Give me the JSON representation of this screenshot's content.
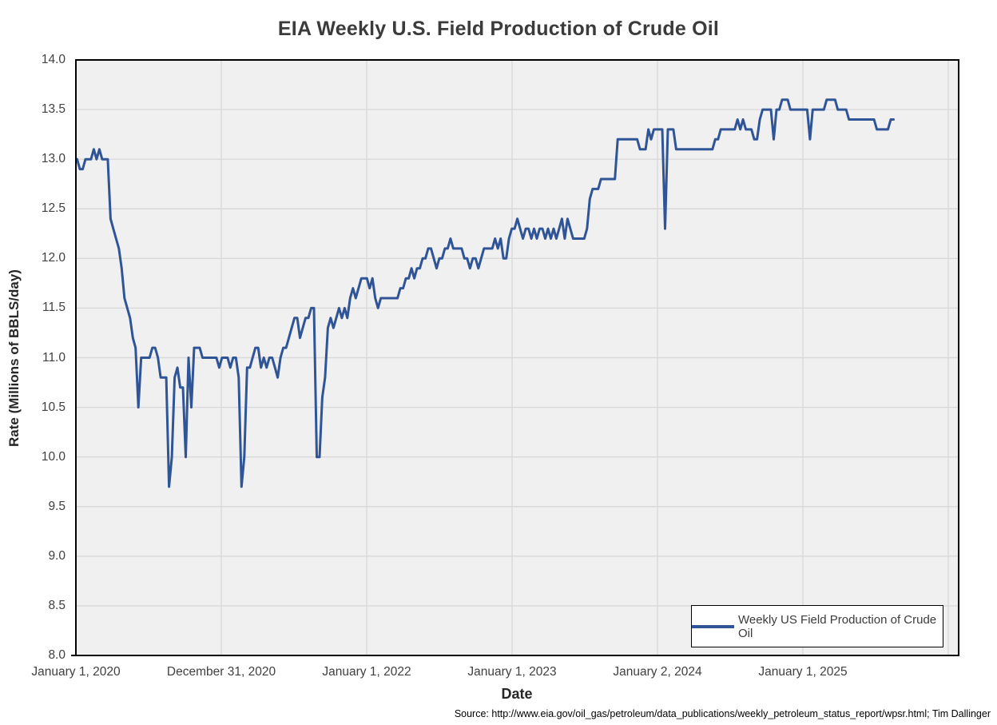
{
  "title": "EIA Weekly U.S. Field Production of Crude Oil",
  "y_axis": {
    "title": "Rate (Millions of BBLS/day)",
    "tick_labels": [
      "14.0",
      "13.5",
      "13.0",
      "12.5",
      "12.0",
      "11.5",
      "11.0",
      "10.5",
      "10.0",
      "9.5",
      "9.0",
      "8.5",
      "8.0"
    ]
  },
  "x_axis": {
    "title": "Date",
    "tick_labels": [
      "January 1, 2020",
      "December 31, 2020",
      "January 1, 2022",
      "January 1, 2023",
      "January 2, 2024",
      "January 1, 2025"
    ]
  },
  "legend": {
    "label": "Weekly US Field Production of Crude Oil"
  },
  "source": "Source: http://www.eia.gov/oil_gas/petroleum/data_publications/weekly_petroleum_status_report/wpsr.html; Tim Dallinger",
  "colors": {
    "series": "#2F5597",
    "plot_background": "#F0F0F0",
    "gridline": "#D9D9D9",
    "plot_border": "#000000"
  },
  "chart_data": {
    "type": "line",
    "title": "EIA Weekly U.S. Field Production of Crude Oil",
    "xlabel": "Date",
    "ylabel": "Rate (Millions of BBLS/day)",
    "ylim": [
      8.0,
      14.0
    ],
    "y_step": 0.5,
    "grid": true,
    "legend_position": "bottom-right-inside",
    "series_name": "Weekly US Field Production of Crude Oil",
    "frequency": "weekly",
    "start_week": "2020-01-03",
    "end_week": "2025-08-15",
    "units": "million barrels per day",
    "values": [
      13.0,
      12.9,
      12.9,
      13.0,
      13.0,
      13.0,
      13.1,
      13.0,
      13.1,
      13.0,
      13.0,
      13.0,
      12.4,
      12.3,
      12.2,
      12.1,
      11.9,
      11.6,
      11.5,
      11.4,
      11.2,
      11.1,
      10.5,
      11.0,
      11.0,
      11.0,
      11.0,
      11.1,
      11.1,
      11.0,
      10.8,
      10.8,
      10.8,
      9.7,
      10.0,
      10.8,
      10.9,
      10.7,
      10.7,
      10.0,
      11.0,
      10.5,
      11.1,
      11.1,
      11.1,
      11.0,
      11.0,
      11.0,
      11.0,
      11.0,
      11.0,
      10.9,
      11.0,
      11.0,
      11.0,
      10.9,
      11.0,
      11.0,
      10.8,
      9.7,
      10.0,
      10.9,
      10.9,
      11.0,
      11.1,
      11.1,
      10.9,
      11.0,
      10.9,
      11.0,
      11.0,
      10.9,
      10.8,
      11.0,
      11.1,
      11.1,
      11.2,
      11.3,
      11.4,
      11.4,
      11.2,
      11.3,
      11.4,
      11.4,
      11.5,
      11.5,
      10.0,
      10.0,
      10.6,
      10.8,
      11.3,
      11.4,
      11.3,
      11.4,
      11.5,
      11.4,
      11.5,
      11.4,
      11.6,
      11.7,
      11.6,
      11.7,
      11.8,
      11.8,
      11.8,
      11.7,
      11.8,
      11.6,
      11.5,
      11.6,
      11.6,
      11.6,
      11.6,
      11.6,
      11.6,
      11.6,
      11.7,
      11.7,
      11.8,
      11.8,
      11.9,
      11.8,
      11.9,
      11.9,
      12.0,
      12.0,
      12.1,
      12.1,
      12.0,
      11.9,
      12.0,
      12.0,
      12.1,
      12.1,
      12.2,
      12.1,
      12.1,
      12.1,
      12.1,
      12.0,
      12.0,
      11.9,
      12.0,
      12.0,
      11.9,
      12.0,
      12.1,
      12.1,
      12.1,
      12.1,
      12.2,
      12.1,
      12.2,
      12.0,
      12.0,
      12.2,
      12.3,
      12.3,
      12.4,
      12.3,
      12.2,
      12.3,
      12.3,
      12.2,
      12.3,
      12.2,
      12.3,
      12.3,
      12.2,
      12.3,
      12.2,
      12.3,
      12.2,
      12.3,
      12.4,
      12.2,
      12.4,
      12.3,
      12.2,
      12.2,
      12.2,
      12.2,
      12.2,
      12.3,
      12.6,
      12.7,
      12.7,
      12.7,
      12.8,
      12.8,
      12.8,
      12.8,
      12.8,
      12.8,
      13.2,
      13.2,
      13.2,
      13.2,
      13.2,
      13.2,
      13.2,
      13.2,
      13.1,
      13.1,
      13.1,
      13.3,
      13.2,
      13.3,
      13.3,
      13.3,
      13.3,
      12.3,
      13.3,
      13.3,
      13.3,
      13.1,
      13.1,
      13.1,
      13.1,
      13.1,
      13.1,
      13.1,
      13.1,
      13.1,
      13.1,
      13.1,
      13.1,
      13.1,
      13.1,
      13.2,
      13.2,
      13.3,
      13.3,
      13.3,
      13.3,
      13.3,
      13.3,
      13.4,
      13.3,
      13.4,
      13.3,
      13.3,
      13.3,
      13.2,
      13.2,
      13.4,
      13.5,
      13.5,
      13.5,
      13.5,
      13.2,
      13.5,
      13.5,
      13.6,
      13.6,
      13.6,
      13.5,
      13.5,
      13.5,
      13.5,
      13.5,
      13.5,
      13.5,
      13.2,
      13.5,
      13.5,
      13.5,
      13.5,
      13.5,
      13.6,
      13.6,
      13.6,
      13.6,
      13.5,
      13.5,
      13.5,
      13.5,
      13.4,
      13.4,
      13.4,
      13.4,
      13.4,
      13.4,
      13.4,
      13.4,
      13.4,
      13.4,
      13.3,
      13.3,
      13.3,
      13.3,
      13.3,
      13.4,
      13.4
    ]
  }
}
